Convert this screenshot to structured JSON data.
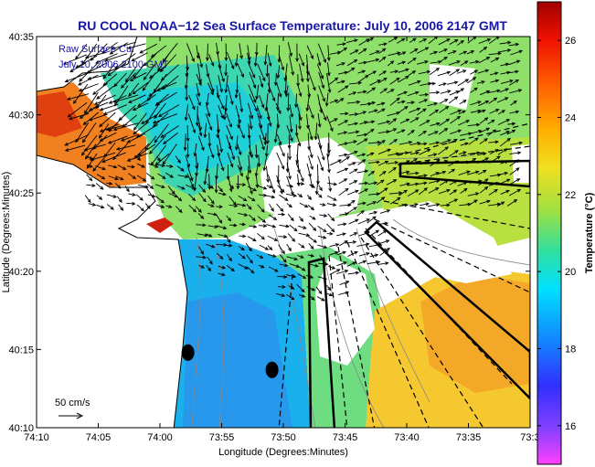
{
  "title": "RU COOL  NOAA−12  Sea Surface Temperature:  July 10, 2006 2147 GMT",
  "overlay_lines": [
    "Raw Surface Cur",
    "July 10, 2006 2100 GMT"
  ],
  "scale_label": "50 cm/s",
  "xlabel": "Longitude (Degrees:Minutes)",
  "ylabel": "Latitude (Degrees:Minutes)",
  "colorbar_label": "Temperature (°C)",
  "x_ticks": [
    "74:10",
    "74:05",
    "74:00",
    "73:55",
    "73:50",
    "73:45",
    "73:40",
    "73:35",
    "73:3"
  ],
  "y_ticks": [
    "40:35",
    "40:30",
    "40:25",
    "40:20",
    "40:15",
    "40:10"
  ],
  "colorbar_ticks": [
    "26",
    "24",
    "22",
    "20",
    "18",
    "16"
  ],
  "colorbar_range": [
    15,
    27
  ],
  "colors": {
    "title": "#1616a8",
    "land": "#ffffff",
    "contour": "#888888",
    "transect": "#000000"
  },
  "chart_data": {
    "type": "heatmap",
    "variable": "Sea Surface Temperature",
    "units": "°C",
    "x_range_deg": [
      -74.1667,
      -73.55
    ],
    "y_range_deg": [
      40.1667,
      40.5833
    ],
    "markers": [
      {
        "lon": -73.9775,
        "lat": 40.2467,
        "shape": "filled-ellipse"
      },
      {
        "lon": -73.8725,
        "lat": 40.2283,
        "shape": "filled-ellipse"
      }
    ]
  }
}
